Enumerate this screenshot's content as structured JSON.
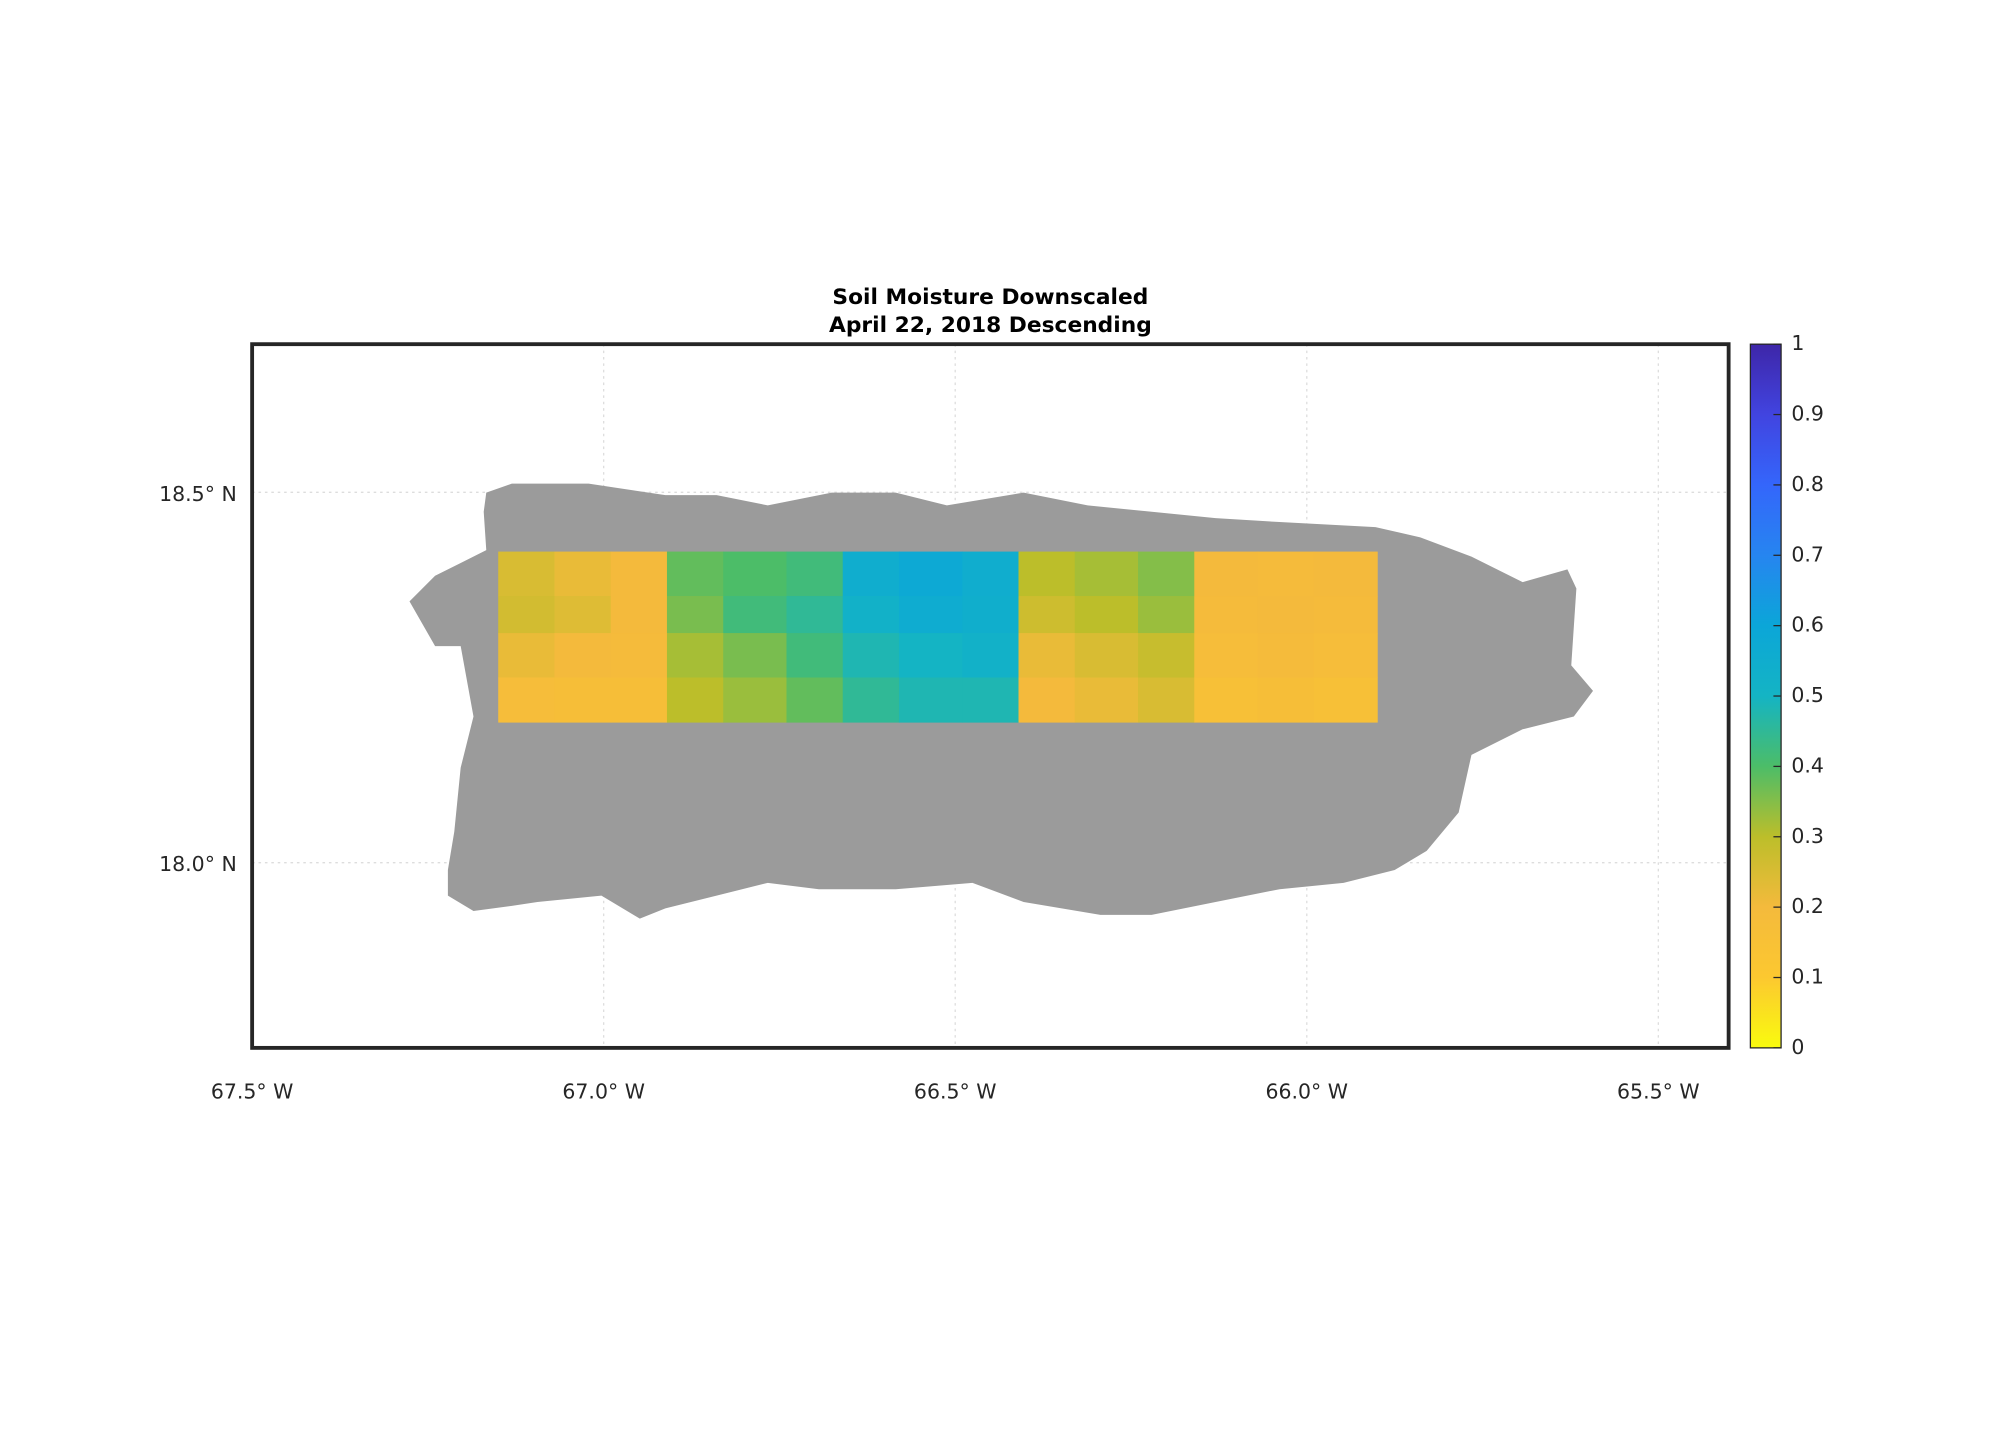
{
  "chart_data": {
    "type": "heatmap-map",
    "title": "Soil Moisture Downscaled",
    "subtitle": "April 22, 2018 Descending",
    "xlim": [
      -67.5,
      -65.4
    ],
    "ylim": [
      17.75,
      18.7
    ],
    "xticks": [
      {
        "value": -67.5,
        "label": "67.5° W"
      },
      {
        "value": -67.0,
        "label": "67.0° W"
      },
      {
        "value": -66.5,
        "label": "66.5° W"
      },
      {
        "value": -66.0,
        "label": "66.0° W"
      },
      {
        "value": -65.5,
        "label": "65.5° W"
      }
    ],
    "yticks": [
      {
        "value": 18.0,
        "label": "18.0° N"
      },
      {
        "value": 18.5,
        "label": "18.5° N"
      }
    ],
    "grid": true,
    "lon_edges": [
      -67.15,
      -67.07,
      -66.99,
      -66.91,
      -66.83,
      -66.74,
      -66.66,
      -66.58,
      -66.49,
      -66.41,
      -66.33,
      -66.24,
      -66.16,
      -66.07,
      -65.99,
      -65.9
    ],
    "lat_edges": [
      18.42,
      18.36,
      18.31,
      18.25,
      18.19
    ],
    "values": [
      [
        0.25,
        0.22,
        0.2,
        0.38,
        0.4,
        0.42,
        0.55,
        0.58,
        0.55,
        0.3,
        0.32,
        0.35,
        0.2,
        0.19,
        0.2
      ],
      [
        0.26,
        0.24,
        0.2,
        0.36,
        0.42,
        0.45,
        0.52,
        0.56,
        0.54,
        0.27,
        0.3,
        0.33,
        0.19,
        0.2,
        0.19
      ],
      [
        0.22,
        0.2,
        0.19,
        0.32,
        0.36,
        0.42,
        0.48,
        0.5,
        0.52,
        0.22,
        0.25,
        0.28,
        0.18,
        0.19,
        0.18
      ],
      [
        0.18,
        0.17,
        0.17,
        0.3,
        0.33,
        0.38,
        0.45,
        0.48,
        0.48,
        0.2,
        0.22,
        0.25,
        0.16,
        0.17,
        0.16
      ]
    ],
    "clim": [
      0,
      1
    ],
    "cticks": [
      0,
      0.1,
      0.2,
      0.3,
      0.4,
      0.5,
      0.6,
      0.7,
      0.8,
      0.9,
      1
    ],
    "colormap": [
      "#f9fb0e",
      "#fcc830",
      "#f4ba3c",
      "#bcbe2a",
      "#4cbd68",
      "#14b4c4",
      "#0ba6d8",
      "#2685f0",
      "#3466fb",
      "#4144e0",
      "#3e26a8"
    ],
    "land_color": "#9b9b9b"
  }
}
